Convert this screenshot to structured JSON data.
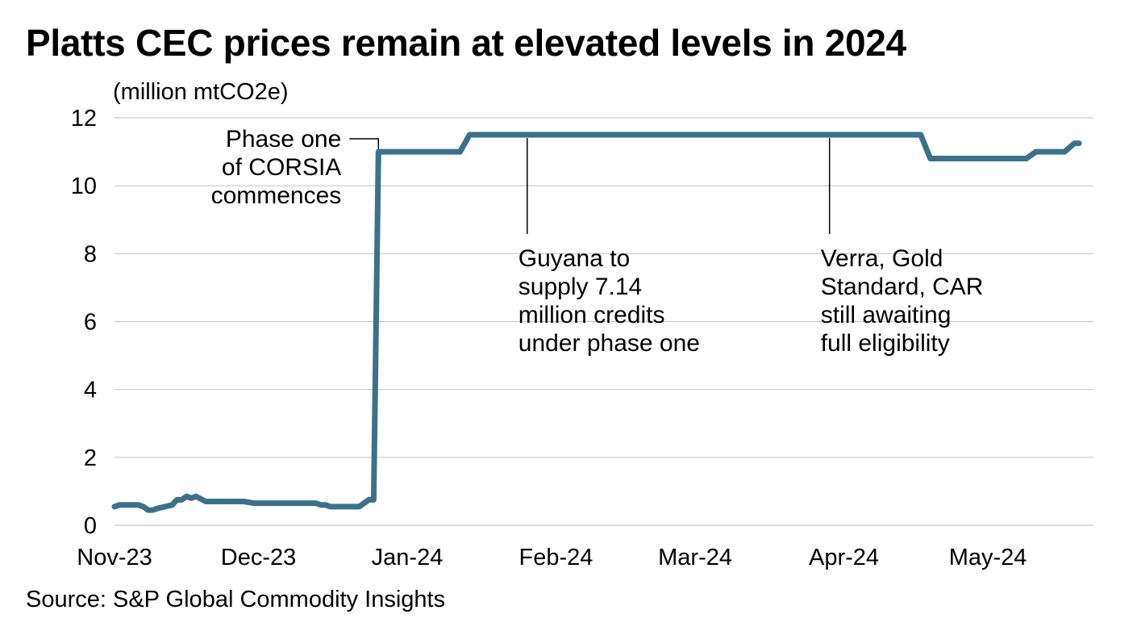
{
  "title": "Platts CEC prices remain at elevated levels in 2024",
  "unit_label": "(million mtCO2e)",
  "source": "Source: S&P Global Commodity Insights",
  "colors": {
    "line": "#3d7189",
    "grid": "#c8c8c8",
    "annotation": "#000000"
  },
  "chart_data": {
    "type": "line",
    "title": "Platts CEC prices remain at elevated levels in 2024",
    "ylabel": "(million mtCO2e)",
    "xlabel": "",
    "ylim": [
      0,
      12
    ],
    "yticks": [
      0,
      2,
      4,
      6,
      8,
      10,
      12
    ],
    "ytick_labels": [
      "0",
      "2",
      "4",
      "6",
      "8",
      "10",
      "12"
    ],
    "x_range": [
      "2023-11-01",
      "2024-05-23"
    ],
    "xticks": [
      {
        "date": "2023-11-01",
        "label": "Nov-23"
      },
      {
        "date": "2023-12-01",
        "label": "Dec-23"
      },
      {
        "date": "2024-01-01",
        "label": "Jan-24"
      },
      {
        "date": "2024-02-01",
        "label": "Feb-24"
      },
      {
        "date": "2024-03-01",
        "label": "Mar-24"
      },
      {
        "date": "2024-04-01",
        "label": "Apr-24"
      },
      {
        "date": "2024-05-01",
        "label": "May-24"
      }
    ],
    "grid": true,
    "series": [
      {
        "name": "Platts CEC",
        "points": [
          {
            "date": "2023-11-01",
            "value": 0.55
          },
          {
            "date": "2023-11-02",
            "value": 0.6
          },
          {
            "date": "2023-11-06",
            "value": 0.6
          },
          {
            "date": "2023-11-07",
            "value": 0.55
          },
          {
            "date": "2023-11-08",
            "value": 0.45
          },
          {
            "date": "2023-11-09",
            "value": 0.45
          },
          {
            "date": "2023-11-10",
            "value": 0.5
          },
          {
            "date": "2023-11-13",
            "value": 0.6
          },
          {
            "date": "2023-11-14",
            "value": 0.75
          },
          {
            "date": "2023-11-15",
            "value": 0.75
          },
          {
            "date": "2023-11-16",
            "value": 0.85
          },
          {
            "date": "2023-11-17",
            "value": 0.8
          },
          {
            "date": "2023-11-18",
            "value": 0.85
          },
          {
            "date": "2023-11-20",
            "value": 0.7
          },
          {
            "date": "2023-11-28",
            "value": 0.7
          },
          {
            "date": "2023-11-30",
            "value": 0.65
          },
          {
            "date": "2023-12-13",
            "value": 0.65
          },
          {
            "date": "2023-12-14",
            "value": 0.6
          },
          {
            "date": "2023-12-15",
            "value": 0.6
          },
          {
            "date": "2023-12-16",
            "value": 0.55
          },
          {
            "date": "2023-12-22",
            "value": 0.55
          },
          {
            "date": "2023-12-24",
            "value": 0.75
          },
          {
            "date": "2023-12-25",
            "value": 0.75
          },
          {
            "date": "2023-12-26",
            "value": 11.0
          },
          {
            "date": "2024-01-12",
            "value": 11.0
          },
          {
            "date": "2024-01-14",
            "value": 11.5
          },
          {
            "date": "2024-04-17",
            "value": 11.5
          },
          {
            "date": "2024-04-19",
            "value": 10.8
          },
          {
            "date": "2024-05-09",
            "value": 10.8
          },
          {
            "date": "2024-05-11",
            "value": 11.0
          },
          {
            "date": "2024-05-17",
            "value": 11.0
          },
          {
            "date": "2024-05-19",
            "value": 11.25
          },
          {
            "date": "2024-05-20",
            "value": 11.25
          }
        ]
      }
    ],
    "annotations": [
      {
        "lines": [
          "Phase one",
          "of CORSIA",
          "commences"
        ],
        "date": "2023-12-26",
        "value": 11.0
      },
      {
        "lines": [
          "Guyana to",
          "supply 7.14",
          "million credits",
          "under phase one"
        ],
        "date": "2024-01-26",
        "value": 11.5
      },
      {
        "lines": [
          "Verra, Gold",
          "Standard, CAR",
          "still awaiting",
          "full eligibility"
        ],
        "date": "2024-03-29",
        "value": 11.5
      }
    ]
  }
}
